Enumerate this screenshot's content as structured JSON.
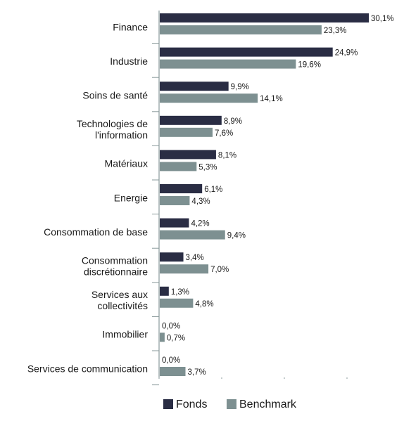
{
  "colors": {
    "fonds": "#2a2d44",
    "benchmark": "#7d9091",
    "axis": "#8a9a9b",
    "text": "#1a1a1a"
  },
  "chart_data": {
    "type": "bar",
    "orientation": "horizontal",
    "grid": false,
    "legend_position": "bottom",
    "categories": [
      [
        "Finance"
      ],
      [
        "Industrie"
      ],
      [
        "Soins de santé"
      ],
      [
        "Technologies de",
        "l'information"
      ],
      [
        "Matériaux"
      ],
      [
        "Energie"
      ],
      [
        "Consommation de base"
      ],
      [
        "Consommation",
        "discrétionnaire"
      ],
      [
        "Services aux",
        "collectivités"
      ],
      [
        "Immobilier"
      ],
      [
        "Services de communication"
      ]
    ],
    "series": [
      {
        "name": "Fonds",
        "color": "#2a2d44",
        "values": [
          30.1,
          24.9,
          9.9,
          8.9,
          8.1,
          6.1,
          4.2,
          3.4,
          1.3,
          0.0,
          0.0
        ],
        "labels": [
          "30,1%",
          "24,9%",
          "9,9%",
          "8,9%",
          "8,1%",
          "6,1%",
          "4,2%",
          "3,4%",
          "1,3%",
          "0,0%",
          "0,0%"
        ]
      },
      {
        "name": "Benchmark",
        "color": "#7d9091",
        "values": [
          23.3,
          19.6,
          14.1,
          7.6,
          5.3,
          4.3,
          9.4,
          7.0,
          4.8,
          0.7,
          3.7
        ],
        "labels": [
          "23,3%",
          "19,6%",
          "14,1%",
          "7,6%",
          "5,3%",
          "4,3%",
          "9,4%",
          "7,0%",
          "4,8%",
          "0,7%",
          "3,7%"
        ]
      }
    ],
    "xlim": [
      0,
      30.1
    ]
  }
}
